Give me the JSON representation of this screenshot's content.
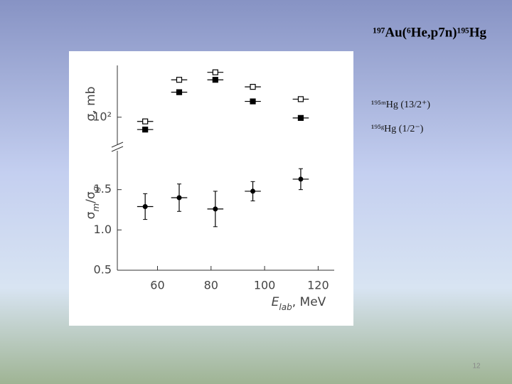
{
  "slide": {
    "title": "¹⁹⁷Au(⁶He,p7n)¹⁹⁵Hg",
    "page_number": "12"
  },
  "chart_data": [
    {
      "type": "scatter",
      "log_y": true,
      "ylabel": [
        "σ",
        ", mb"
      ],
      "x": [
        55.4,
        68.1,
        81.6,
        95.6,
        113.5
      ],
      "xlim": [
        45,
        126
      ],
      "ylim": [
        50,
        420
      ],
      "yticks": [
        {
          "value": 100,
          "label": "10²"
        }
      ],
      "series": [
        {
          "name": "¹⁹⁵ᵐHg (13/2⁺)",
          "color": "#000000",
          "marker": "square-open",
          "values": [
            89,
            282,
            347,
            232,
            165
          ],
          "xerr": [
            3,
            3,
            3,
            3,
            3
          ]
        },
        {
          "name": "¹⁹⁵ᵍHg (1/2⁻)",
          "color": "#000000",
          "marker": "square",
          "values": [
            71,
            200,
            282,
            155,
            98
          ],
          "xerr": [
            3,
            3,
            3,
            3,
            3
          ]
        }
      ]
    },
    {
      "type": "scatter",
      "ylabel": [
        "σ",
        "m",
        "/σ",
        "g"
      ],
      "xlabel": [
        "E",
        "lab",
        ", MeV"
      ],
      "x": [
        55.4,
        68.1,
        81.6,
        95.6,
        113.5
      ],
      "xlim": [
        45,
        126
      ],
      "xticks": [
        60,
        80,
        100,
        120
      ],
      "ylim": [
        0.5,
        2.0
      ],
      "yticks": [
        0.5,
        {
          "value": 1.0,
          "label": "1.0"
        },
        1.5
      ],
      "series": [
        {
          "color": "#000000",
          "marker": "circle",
          "values": [
            1.29,
            1.4,
            1.26,
            1.48,
            1.63
          ],
          "yerr": [
            0.16,
            0.17,
            0.22,
            0.12,
            0.13
          ],
          "xerr": [
            3,
            3,
            3,
            3,
            3
          ]
        }
      ]
    }
  ]
}
